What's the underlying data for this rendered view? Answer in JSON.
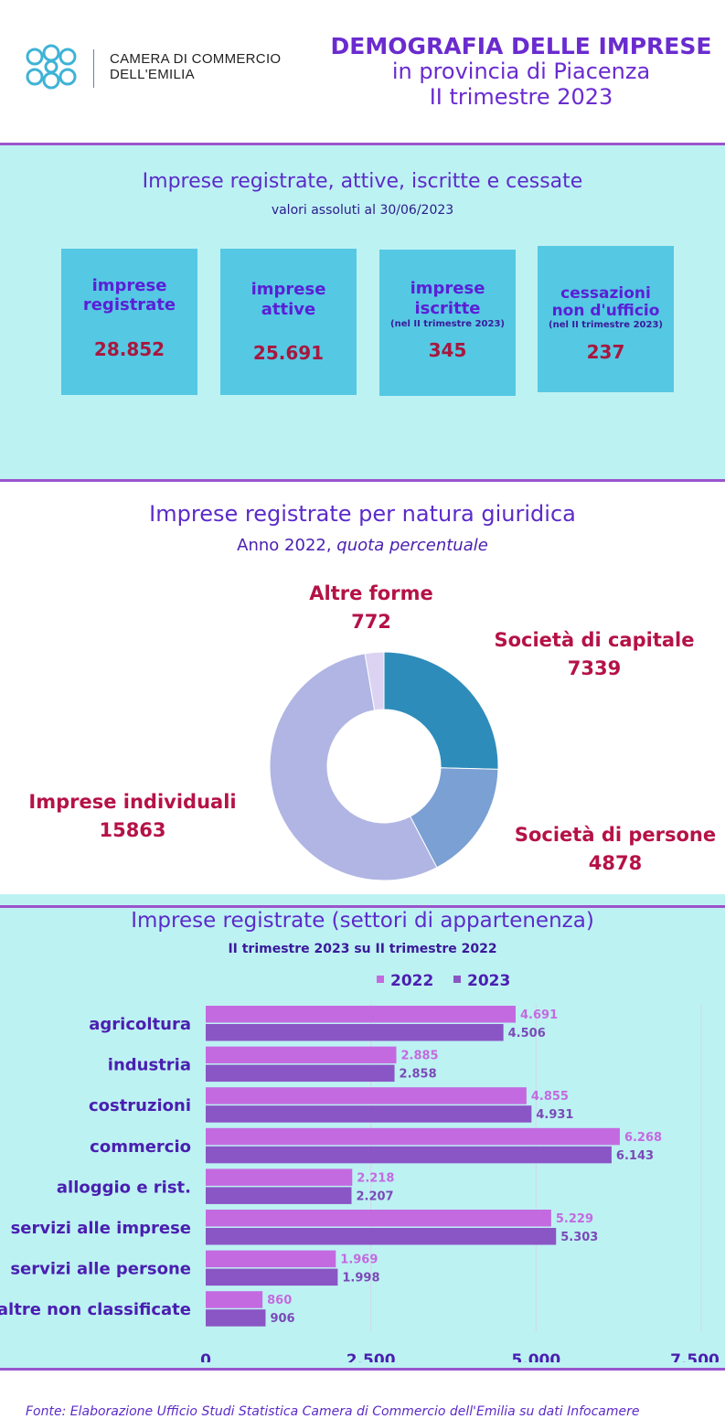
{
  "header": {
    "org_line1": "CAMERA DI COMMERCIO",
    "org_line2": "DELL'EMILIA",
    "title": "DEMOGRAFIA DELLE IMPRESE",
    "subtitle1": "in provincia di Piacenza",
    "subtitle2": "II trimestre 2023"
  },
  "section1": {
    "title": "Imprese registrate, attive, iscritte e cessate",
    "subtitle": "valori assoluti  al 30/06/2023",
    "cards": [
      {
        "label1": "imprese",
        "label2": "registrate",
        "note": "",
        "value": "28.852"
      },
      {
        "label1": "imprese",
        "label2": "attive",
        "note": "",
        "value": "25.691"
      },
      {
        "label1": "imprese",
        "label2": "iscritte",
        "note": "(nel II trimestre 2023)",
        "value": "345"
      },
      {
        "label1": "cessazioni",
        "label2": "non d'ufficio",
        "note": "(nel II trimestre 2023)",
        "value": "237"
      }
    ]
  },
  "section2": {
    "title": "Imprese registrate per natura giuridica",
    "subtitle_plain": "Anno 2022, ",
    "subtitle_italic": "quota percentuale"
  },
  "section3": {
    "title": "Imprese registrate (settori di appartenenza)",
    "subtitle": "II trimestre 2023 su II trimestre 2022"
  },
  "footer": "Fonte: Elaborazione Ufficio Studi Statistica Camera di Commercio dell'Emilia su dati Infocamere",
  "colors": {
    "accent": "#6a2bcf",
    "panel": "#bdf2f3",
    "card": "#55c8e3",
    "value_red": "#a8173e",
    "bar_2022": "#c46ae0",
    "bar_2023": "#8a55c4"
  },
  "chart_data": [
    {
      "type": "pie",
      "style": "donut",
      "labels": [
        "Società di capitale",
        "Società di persone",
        "Imprese individuali",
        "Altre forme"
      ],
      "label_values": [
        "7339",
        "4878",
        "15863",
        "772"
      ],
      "values": [
        7339,
        4878,
        15863,
        772
      ],
      "colors": [
        "#2e8cbb",
        "#7aa0d4",
        "#b0b5e4",
        "#dcd3f2"
      ]
    },
    {
      "type": "bar",
      "orientation": "horizontal",
      "categories": [
        "agricoltura",
        "industria",
        "costruzioni",
        "commercio",
        "alloggio e rist.",
        "servizi alle imprese",
        "servizi alle persone",
        "altre non classificate"
      ],
      "series": [
        {
          "name": "2022",
          "values": [
            4691,
            2885,
            4855,
            6268,
            2218,
            5229,
            1969,
            860
          ],
          "labels": [
            "4.691",
            "2.885",
            "4.855",
            "6.268",
            "2.218",
            "5.229",
            "1.969",
            "860"
          ]
        },
        {
          "name": "2023",
          "values": [
            4506,
            2858,
            4931,
            6143,
            2207,
            5303,
            1998,
            906
          ],
          "labels": [
            "4.506",
            "2.858",
            "4.931",
            "6.143",
            "2.207",
            "5.303",
            "1.998",
            "906"
          ]
        }
      ],
      "xlim": [
        0,
        7500
      ],
      "xticks": [
        0,
        2500,
        5000,
        7500
      ],
      "xtick_labels": [
        "0",
        "2.500",
        "5.000",
        "7.500"
      ],
      "grid": true,
      "legend": "top"
    }
  ]
}
